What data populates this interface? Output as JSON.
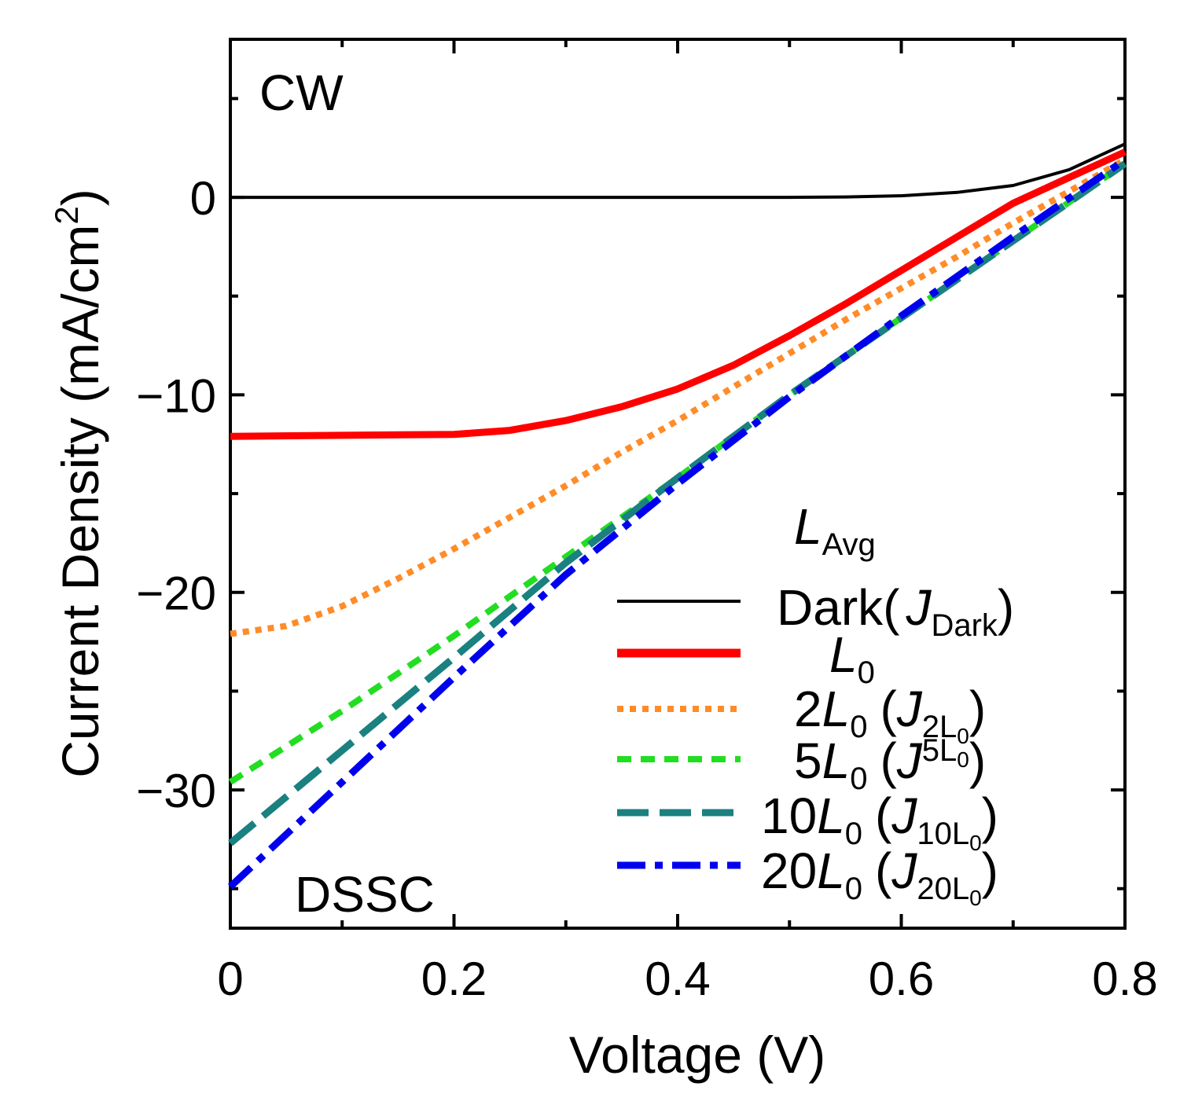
{
  "chart_data": {
    "type": "line",
    "title": "",
    "xlabel": "Voltage (V)",
    "ylabel_main": "Current Density (mA/cm",
    "ylabel_sup": "2",
    "ylabel_close": ")",
    "xlim": [
      0,
      0.8
    ],
    "ylim": [
      -37,
      8
    ],
    "x_ticks": [
      0,
      0.2,
      0.4,
      0.6,
      0.8
    ],
    "x_tick_labels": [
      "0",
      "0.2",
      "0.4",
      "0.6",
      "0.8"
    ],
    "y_ticks": [
      0,
      -10,
      -20,
      -30
    ],
    "y_tick_labels": [
      "0",
      "−10",
      "−20",
      "−30"
    ],
    "annotations": {
      "top_left": "CW",
      "bottom_left": "DSSC"
    },
    "legend": {
      "placement": "bottom-right",
      "title_main": "L",
      "title_sub": "Avg",
      "entries": [
        {
          "prefix": "",
          "main": "Dark(",
          "jsub": "Dark",
          "close": ")"
        },
        {
          "prefix": "",
          "main": "L",
          "sub": "0"
        },
        {
          "prefix": "2",
          "main": "L",
          "sub": "0",
          "jsub": "2L",
          "jsubsub": "0"
        },
        {
          "prefix": "5",
          "main": "L",
          "sub": "0",
          "jsub": "5L",
          "jsubsub": "0"
        },
        {
          "prefix": "10",
          "main": "L",
          "sub": "0",
          "jsub": "10L",
          "jsubsub": "0"
        },
        {
          "prefix": "20",
          "main": "L",
          "sub": "0",
          "jsub": "20L",
          "jsubsub": "0"
        }
      ]
    },
    "series": [
      {
        "name": "Dark (J_Dark)",
        "color": "#000000",
        "style": "solid-thin",
        "x": [
          0,
          0.1,
          0.2,
          0.3,
          0.4,
          0.5,
          0.55,
          0.6,
          0.65,
          0.7,
          0.75,
          0.8
        ],
        "y": [
          0,
          0,
          0,
          0,
          0,
          0,
          0.02,
          0.08,
          0.25,
          0.6,
          1.4,
          2.7
        ]
      },
      {
        "name": "L0",
        "color": "#ff0000",
        "style": "solid-thick",
        "x": [
          0,
          0.1,
          0.2,
          0.25,
          0.3,
          0.35,
          0.4,
          0.45,
          0.5,
          0.55,
          0.6,
          0.65,
          0.7,
          0.75,
          0.8
        ],
        "y": [
          -12.1,
          -12.05,
          -12.0,
          -11.8,
          -11.3,
          -10.6,
          -9.7,
          -8.5,
          -7.0,
          -5.4,
          -3.7,
          -2.0,
          -0.3,
          1.0,
          2.3
        ]
      },
      {
        "name": "2L0 (J_2L0)",
        "color": "#ff8c28",
        "style": "dotted",
        "x": [
          0,
          0.05,
          0.1,
          0.15,
          0.2,
          0.25,
          0.3,
          0.35,
          0.4,
          0.45,
          0.5,
          0.55,
          0.6,
          0.65,
          0.7,
          0.75,
          0.8
        ],
        "y": [
          -22.1,
          -21.7,
          -20.7,
          -19.3,
          -17.8,
          -16.2,
          -14.6,
          -12.9,
          -11.3,
          -9.6,
          -7.9,
          -6.2,
          -4.6,
          -3.0,
          -1.3,
          0.3,
          1.9
        ]
      },
      {
        "name": "5L0 (J_5L0)",
        "color": "#22dd22",
        "style": "short-dash",
        "x": [
          0,
          0.1,
          0.2,
          0.3,
          0.4,
          0.5,
          0.6,
          0.7,
          0.8
        ],
        "y": [
          -29.6,
          -26.0,
          -22.2,
          -18.2,
          -14.2,
          -10.0,
          -6.1,
          -2.2,
          1.7
        ]
      },
      {
        "name": "10L0 (J_10L0)",
        "color": "#1a8080",
        "style": "long-dash",
        "x": [
          0,
          0.1,
          0.2,
          0.3,
          0.4,
          0.5,
          0.6,
          0.7,
          0.8
        ],
        "y": [
          -32.7,
          -28.0,
          -23.3,
          -18.5,
          -14.2,
          -10.0,
          -6.1,
          -2.2,
          1.7
        ]
      },
      {
        "name": "20L0 (J_20L0)",
        "color": "#0000ee",
        "style": "dash-dot",
        "x": [
          0,
          0.1,
          0.2,
          0.3,
          0.4,
          0.5,
          0.6,
          0.7,
          0.8
        ],
        "y": [
          -34.9,
          -29.6,
          -24.3,
          -19.1,
          -14.5,
          -10.1,
          -6.0,
          -2.0,
          1.9
        ]
      }
    ]
  }
}
